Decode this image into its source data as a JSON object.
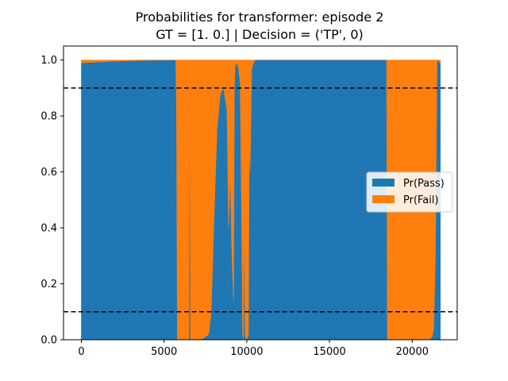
{
  "chart_data": {
    "type": "area",
    "title_lines": [
      "Probabilities for transformer: episode 2",
      "GT = [1. 0.] | Decision = ('TP', 0)"
    ],
    "xlabel": "",
    "ylabel": "",
    "xlim": [
      -1080,
      22720
    ],
    "ylim": [
      0,
      1.05
    ],
    "xticks": [
      0,
      5000,
      10000,
      15000,
      20000
    ],
    "xtick_labels": [
      "0",
      "5000",
      "10000",
      "15000",
      "20000"
    ],
    "yticks": [
      0.0,
      0.2,
      0.4,
      0.6,
      0.8,
      1.0
    ],
    "ytick_labels": [
      "0.0",
      "0.2",
      "0.4",
      "0.6",
      "0.8",
      "1.0"
    ],
    "thresholds": [
      0.9,
      0.1
    ],
    "stacked": true,
    "grid": false,
    "legend_position": "center right",
    "x": [
      0,
      1000,
      2500,
      4000,
      5700,
      5750,
      5800,
      6500,
      6550,
      6600,
      7200,
      7500,
      7700,
      7850,
      8000,
      8200,
      8400,
      8600,
      8800,
      8900,
      9000,
      9100,
      9200,
      9250,
      9300,
      9400,
      9500,
      9600,
      9700,
      9750,
      9800,
      9850,
      9900,
      9950,
      10000,
      10100,
      10150,
      10200,
      10300,
      10400,
      10500,
      11000,
      15000,
      18450,
      18500,
      18550,
      21000,
      21200,
      21300,
      21400,
      21500,
      21700
    ],
    "series": [
      {
        "name": "Pr(Pass)",
        "color": "#1f77b4",
        "values": [
          0.99,
          0.993,
          0.997,
          0.999,
          1.0,
          0.85,
          0.0,
          0.0,
          1.0,
          0.0,
          0.0,
          0.01,
          0.02,
          0.1,
          0.4,
          0.75,
          0.88,
          0.9,
          0.82,
          0.4,
          0.6,
          0.3,
          0.14,
          0.9,
          0.98,
          0.99,
          0.97,
          0.92,
          0.35,
          0.02,
          0.0,
          0.5,
          0.02,
          0.0,
          0.0,
          0.02,
          0.75,
          0.6,
          0.97,
          0.99,
          1.0,
          1.0,
          1.0,
          1.0,
          0.0,
          0.0,
          0.0,
          0.01,
          0.04,
          0.3,
          1.0,
          0.99
        ]
      },
      {
        "name": "Pr(Fail)",
        "color": "#ff7f0e",
        "values": [
          0.01,
          0.007,
          0.003,
          0.001,
          0.0,
          0.15,
          1.0,
          1.0,
          0.0,
          1.0,
          1.0,
          0.99,
          0.98,
          0.9,
          0.6,
          0.25,
          0.12,
          0.1,
          0.18,
          0.6,
          0.4,
          0.7,
          0.86,
          0.1,
          0.02,
          0.01,
          0.03,
          0.08,
          0.65,
          0.98,
          1.0,
          0.5,
          0.98,
          1.0,
          1.0,
          0.98,
          0.25,
          0.4,
          0.03,
          0.01,
          0.0,
          0.0,
          0.0,
          0.0,
          1.0,
          1.0,
          1.0,
          0.99,
          0.96,
          0.7,
          0.0,
          0.01
        ]
      }
    ]
  }
}
